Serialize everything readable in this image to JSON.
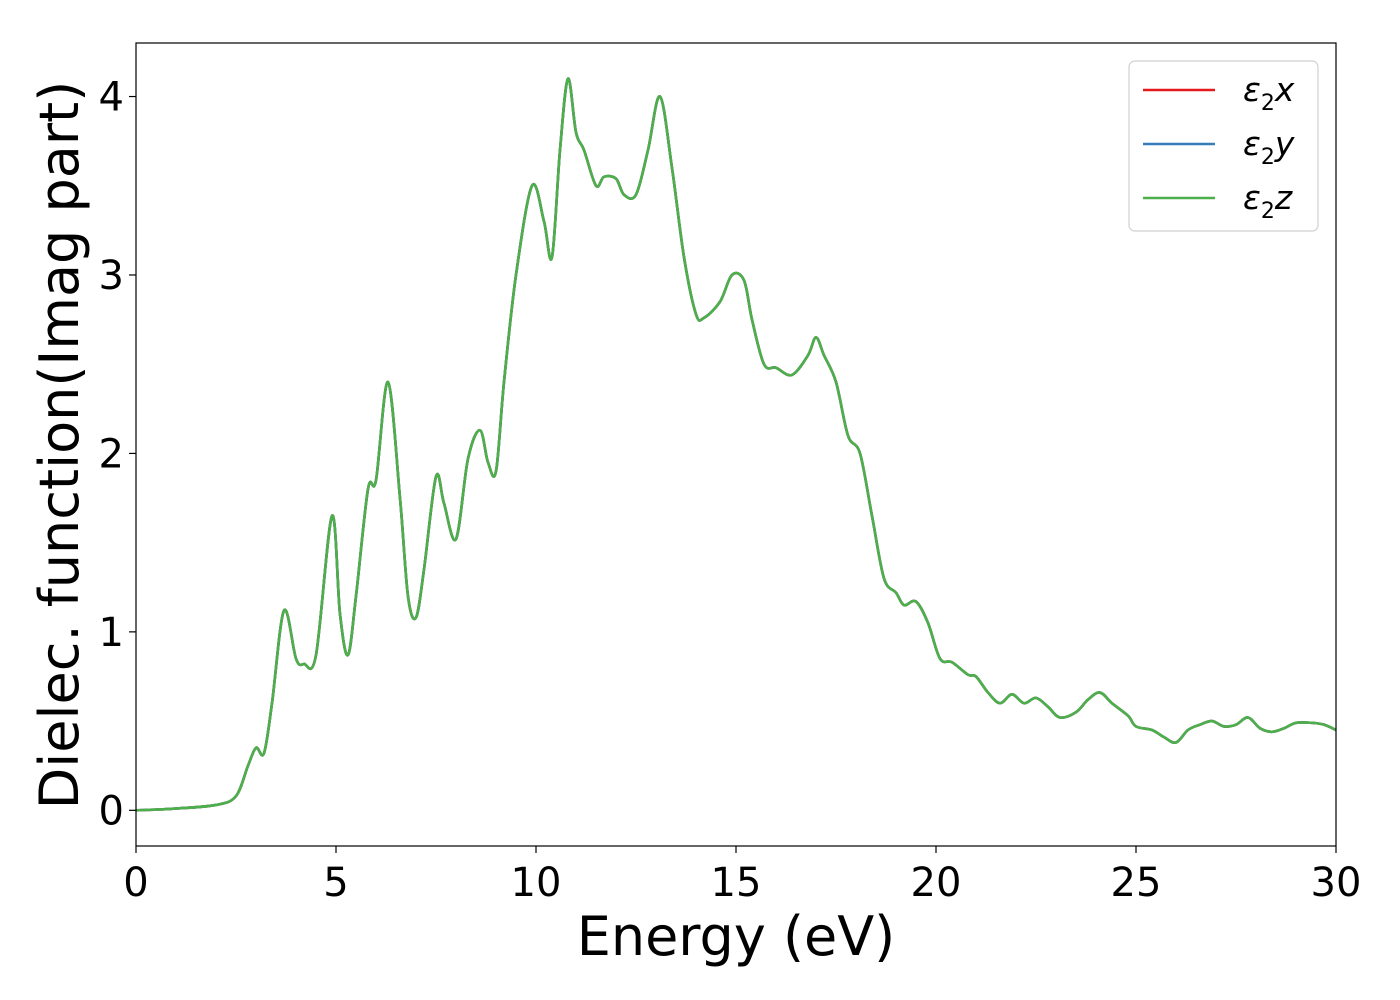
{
  "chart_data": {
    "type": "line",
    "xlabel": "Energy (eV)",
    "ylabel": "Dielec. function(Imag part)",
    "xlim": [
      0,
      30
    ],
    "ylim": [
      -0.2,
      4.3
    ],
    "xticks": [
      0,
      5,
      10,
      15,
      20,
      25,
      30
    ],
    "yticks": [
      0,
      1,
      2,
      3,
      4
    ],
    "grid": false,
    "legend_position": "top-right",
    "series": [
      {
        "name_base": "ε",
        "name_sub": "2",
        "name_suffix": "x",
        "color": "#e41a1c",
        "x": [
          0,
          1,
          2,
          2.5,
          2.8,
          3.0,
          3.2,
          3.4,
          3.7,
          4.0,
          4.2,
          4.5,
          4.9,
          5.1,
          5.3,
          5.5,
          5.8,
          6.0,
          6.3,
          6.6,
          6.8,
          7.0,
          7.2,
          7.5,
          7.7,
          8.0,
          8.3,
          8.6,
          8.8,
          9.0,
          9.2,
          9.5,
          9.9,
          10.2,
          10.4,
          10.6,
          10.8,
          11.0,
          11.2,
          11.5,
          11.7,
          12.0,
          12.2,
          12.5,
          12.8,
          13.1,
          13.4,
          13.7,
          14.0,
          14.2,
          14.6,
          14.9,
          15.2,
          15.4,
          15.7,
          16.0,
          16.4,
          16.8,
          17.0,
          17.2,
          17.5,
          17.8,
          18.1,
          18.4,
          18.7,
          19.0,
          19.2,
          19.5,
          19.8,
          20.1,
          20.4,
          20.8,
          21.0,
          21.3,
          21.6,
          21.9,
          22.2,
          22.5,
          22.8,
          23.1,
          23.5,
          23.8,
          24.1,
          24.4,
          24.8,
          25.0,
          25.4,
          25.7,
          26.0,
          26.3,
          26.6,
          26.9,
          27.2,
          27.5,
          27.8,
          28.1,
          28.4,
          28.7,
          29.0,
          29.4,
          29.7,
          30.0
        ],
        "y": [
          0.0,
          0.01,
          0.03,
          0.08,
          0.25,
          0.35,
          0.32,
          0.6,
          1.12,
          0.85,
          0.82,
          0.87,
          1.65,
          1.1,
          0.87,
          1.2,
          1.8,
          1.85,
          2.4,
          1.75,
          1.2,
          1.08,
          1.35,
          1.87,
          1.72,
          1.52,
          1.97,
          2.13,
          1.95,
          1.9,
          2.4,
          3.0,
          3.5,
          3.3,
          3.1,
          3.7,
          4.1,
          3.8,
          3.7,
          3.5,
          3.55,
          3.54,
          3.45,
          3.45,
          3.7,
          4.0,
          3.6,
          3.1,
          2.78,
          2.76,
          2.85,
          3.0,
          2.97,
          2.75,
          2.5,
          2.48,
          2.44,
          2.55,
          2.65,
          2.55,
          2.4,
          2.1,
          2.0,
          1.65,
          1.3,
          1.22,
          1.15,
          1.17,
          1.05,
          0.85,
          0.83,
          0.76,
          0.75,
          0.66,
          0.6,
          0.65,
          0.6,
          0.63,
          0.58,
          0.52,
          0.55,
          0.62,
          0.66,
          0.6,
          0.53,
          0.47,
          0.45,
          0.41,
          0.38,
          0.45,
          0.48,
          0.5,
          0.47,
          0.48,
          0.52,
          0.46,
          0.44,
          0.46,
          0.49,
          0.49,
          0.48,
          0.45
        ]
      },
      {
        "name_base": "ε",
        "name_sub": "2",
        "name_suffix": "y",
        "color": "#377eb8",
        "x": [
          0,
          1,
          2,
          2.5,
          2.8,
          3.0,
          3.2,
          3.4,
          3.7,
          4.0,
          4.2,
          4.5,
          4.9,
          5.1,
          5.3,
          5.5,
          5.8,
          6.0,
          6.3,
          6.6,
          6.8,
          7.0,
          7.2,
          7.5,
          7.7,
          8.0,
          8.3,
          8.6,
          8.8,
          9.0,
          9.2,
          9.5,
          9.9,
          10.2,
          10.4,
          10.6,
          10.8,
          11.0,
          11.2,
          11.5,
          11.7,
          12.0,
          12.2,
          12.5,
          12.8,
          13.1,
          13.4,
          13.7,
          14.0,
          14.2,
          14.6,
          14.9,
          15.2,
          15.4,
          15.7,
          16.0,
          16.4,
          16.8,
          17.0,
          17.2,
          17.5,
          17.8,
          18.1,
          18.4,
          18.7,
          19.0,
          19.2,
          19.5,
          19.8,
          20.1,
          20.4,
          20.8,
          21.0,
          21.3,
          21.6,
          21.9,
          22.2,
          22.5,
          22.8,
          23.1,
          23.5,
          23.8,
          24.1,
          24.4,
          24.8,
          25.0,
          25.4,
          25.7,
          26.0,
          26.3,
          26.6,
          26.9,
          27.2,
          27.5,
          27.8,
          28.1,
          28.4,
          28.7,
          29.0,
          29.4,
          29.7,
          30.0
        ],
        "y": [
          0.0,
          0.01,
          0.03,
          0.08,
          0.25,
          0.35,
          0.32,
          0.6,
          1.12,
          0.85,
          0.82,
          0.87,
          1.65,
          1.1,
          0.87,
          1.2,
          1.8,
          1.85,
          2.4,
          1.75,
          1.2,
          1.08,
          1.35,
          1.87,
          1.72,
          1.52,
          1.97,
          2.13,
          1.95,
          1.9,
          2.4,
          3.0,
          3.5,
          3.3,
          3.1,
          3.7,
          4.1,
          3.8,
          3.7,
          3.5,
          3.55,
          3.54,
          3.45,
          3.45,
          3.7,
          4.0,
          3.6,
          3.1,
          2.78,
          2.76,
          2.85,
          3.0,
          2.97,
          2.75,
          2.5,
          2.48,
          2.44,
          2.55,
          2.65,
          2.55,
          2.4,
          2.1,
          2.0,
          1.65,
          1.3,
          1.22,
          1.15,
          1.17,
          1.05,
          0.85,
          0.83,
          0.76,
          0.75,
          0.66,
          0.6,
          0.65,
          0.6,
          0.63,
          0.58,
          0.52,
          0.55,
          0.62,
          0.66,
          0.6,
          0.53,
          0.47,
          0.45,
          0.41,
          0.38,
          0.45,
          0.48,
          0.5,
          0.47,
          0.48,
          0.52,
          0.46,
          0.44,
          0.46,
          0.49,
          0.49,
          0.48,
          0.45
        ]
      },
      {
        "name_base": "ε",
        "name_sub": "2",
        "name_suffix": "z",
        "color": "#4daf4a",
        "x": [
          0,
          1,
          2,
          2.5,
          2.8,
          3.0,
          3.2,
          3.4,
          3.7,
          4.0,
          4.2,
          4.5,
          4.9,
          5.1,
          5.3,
          5.5,
          5.8,
          6.0,
          6.3,
          6.6,
          6.8,
          7.0,
          7.2,
          7.5,
          7.7,
          8.0,
          8.3,
          8.6,
          8.8,
          9.0,
          9.2,
          9.5,
          9.9,
          10.2,
          10.4,
          10.6,
          10.8,
          11.0,
          11.2,
          11.5,
          11.7,
          12.0,
          12.2,
          12.5,
          12.8,
          13.1,
          13.4,
          13.7,
          14.0,
          14.2,
          14.6,
          14.9,
          15.2,
          15.4,
          15.7,
          16.0,
          16.4,
          16.8,
          17.0,
          17.2,
          17.5,
          17.8,
          18.1,
          18.4,
          18.7,
          19.0,
          19.2,
          19.5,
          19.8,
          20.1,
          20.4,
          20.8,
          21.0,
          21.3,
          21.6,
          21.9,
          22.2,
          22.5,
          22.8,
          23.1,
          23.5,
          23.8,
          24.1,
          24.4,
          24.8,
          25.0,
          25.4,
          25.7,
          26.0,
          26.3,
          26.6,
          26.9,
          27.2,
          27.5,
          27.8,
          28.1,
          28.4,
          28.7,
          29.0,
          29.4,
          29.7,
          30.0
        ],
        "y": [
          0.0,
          0.01,
          0.03,
          0.08,
          0.25,
          0.35,
          0.32,
          0.6,
          1.12,
          0.85,
          0.82,
          0.87,
          1.65,
          1.1,
          0.87,
          1.2,
          1.8,
          1.85,
          2.4,
          1.75,
          1.2,
          1.08,
          1.35,
          1.87,
          1.72,
          1.52,
          1.97,
          2.13,
          1.95,
          1.9,
          2.4,
          3.0,
          3.5,
          3.3,
          3.1,
          3.7,
          4.1,
          3.8,
          3.7,
          3.5,
          3.55,
          3.54,
          3.45,
          3.45,
          3.7,
          4.0,
          3.6,
          3.1,
          2.78,
          2.76,
          2.85,
          3.0,
          2.97,
          2.75,
          2.5,
          2.48,
          2.44,
          2.55,
          2.65,
          2.55,
          2.4,
          2.1,
          2.0,
          1.65,
          1.3,
          1.22,
          1.15,
          1.17,
          1.05,
          0.85,
          0.83,
          0.76,
          0.75,
          0.66,
          0.6,
          0.65,
          0.6,
          0.63,
          0.58,
          0.52,
          0.55,
          0.62,
          0.66,
          0.6,
          0.53,
          0.47,
          0.45,
          0.41,
          0.38,
          0.45,
          0.48,
          0.5,
          0.47,
          0.48,
          0.52,
          0.46,
          0.44,
          0.46,
          0.49,
          0.49,
          0.48,
          0.45
        ]
      }
    ]
  }
}
